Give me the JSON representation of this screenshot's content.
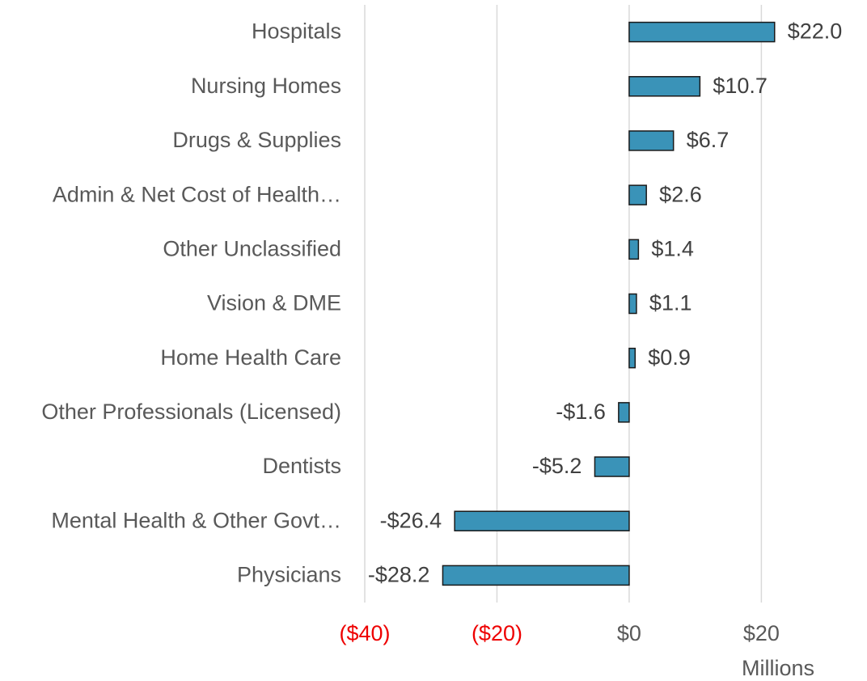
{
  "chart_data": {
    "type": "bar",
    "orientation": "horizontal",
    "categories": [
      "Hospitals",
      "Nursing Homes",
      "Drugs & Supplies",
      "Admin & Net Cost of Health…",
      "Other Unclassified",
      "Vision & DME",
      "Home Health Care",
      "Other Professionals (Licensed)",
      "Dentists",
      "Mental Health & Other Govt…",
      "Physicians"
    ],
    "values": [
      22.0,
      10.7,
      6.7,
      2.6,
      1.4,
      1.1,
      0.9,
      -1.6,
      -5.2,
      -26.4,
      -28.2
    ],
    "value_labels": [
      "$22.0",
      "$10.7",
      "$6.7",
      "$2.6",
      "$1.4",
      "$1.1",
      "$0.9",
      "-$1.6",
      "-$5.2",
      "-$26.4",
      "-$28.2"
    ],
    "color": "#3a93b8",
    "x_label": "Millions",
    "xlim": [
      -40,
      35
    ],
    "xticks": [
      {
        "value": -40,
        "label": "($40)"
      },
      {
        "value": -20,
        "label": "($20)"
      },
      {
        "value": 0,
        "label": "$0"
      },
      {
        "value": 20,
        "label": "$20"
      }
    ],
    "tick_color": "#595959",
    "negative_tick_color": "#ee0000",
    "grid": true
  }
}
